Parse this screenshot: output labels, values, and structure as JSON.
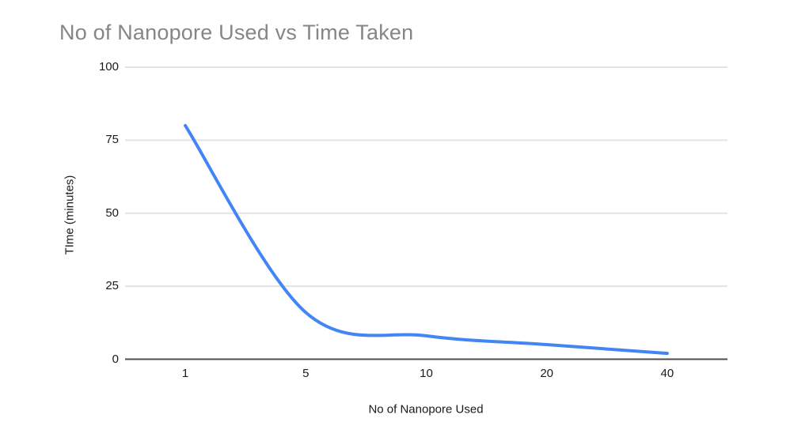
{
  "chart": {
    "title_color": "#868686",
    "tick_label_color": "#1a1a1a",
    "axis_title_color": "#1a1a1a",
    "gridline_color": "#e3e3e3",
    "axis_line_color": "#4d4d4d",
    "series_color": "#4285f4",
    "background_color": "#ffffff"
  },
  "chart_data": {
    "type": "line",
    "smooth": true,
    "title": "No of Nanopore Used vs Time Taken",
    "xlabel": "No of Nanopore Used",
    "ylabel": "TIme (minutes)",
    "categories": [
      "1",
      "5",
      "10",
      "20",
      "40"
    ],
    "values": [
      80,
      16,
      8,
      5,
      2
    ],
    "series_name": "Time Taken",
    "ylim": [
      0,
      100
    ],
    "yticks": [
      0,
      25,
      50,
      75,
      100
    ],
    "grid": true,
    "legend": "none",
    "x_axis_type": "categorical"
  }
}
